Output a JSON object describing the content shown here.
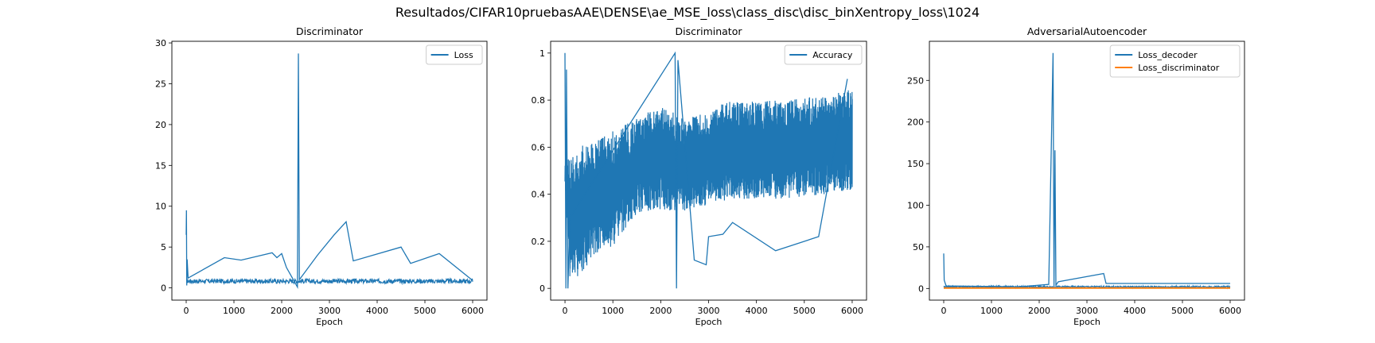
{
  "figure": {
    "suptitle": "Resultados/CIFAR10pruebasAAE\\DENSE\\ae_MSE_loss\\class_disc\\disc_binXentropy_loss\\1024"
  },
  "colors": {
    "blue": "#1f77b4",
    "orange": "#ff7f0e"
  },
  "chart_data": [
    {
      "type": "line",
      "title": "Discriminator",
      "xlabel": "Epoch",
      "ylabel": "",
      "xlim": [
        -300,
        6300
      ],
      "ylim": [
        -1.5,
        30.2
      ],
      "xticks": [
        0,
        1000,
        2000,
        3000,
        4000,
        5000,
        6000
      ],
      "yticks": [
        0,
        5,
        10,
        15,
        20,
        25,
        30
      ],
      "legend": "upper-right",
      "series": [
        {
          "name": "Loss",
          "color": "#1f77b4",
          "noise": [
            0.55,
            1.1
          ],
          "points": [
            [
              0,
              6.5
            ],
            [
              5,
              9.5
            ],
            [
              12,
              0.3
            ],
            [
              20,
              3.5
            ],
            [
              40,
              1.2
            ],
            [
              800,
              3.7
            ],
            [
              1150,
              3.4
            ],
            [
              1800,
              4.3
            ],
            [
              1900,
              3.7
            ],
            [
              2000,
              4.2
            ],
            [
              2100,
              2.5
            ],
            [
              2330,
              0.1
            ],
            [
              2350,
              28.7
            ],
            [
              2370,
              1.0
            ],
            [
              2750,
              4.0
            ],
            [
              3100,
              6.5
            ],
            [
              3350,
              8.1
            ],
            [
              3500,
              3.3
            ],
            [
              4500,
              5.0
            ],
            [
              4700,
              3.0
            ],
            [
              5300,
              4.2
            ],
            [
              6000,
              0.9
            ]
          ]
        }
      ]
    },
    {
      "type": "line",
      "title": "Discriminator",
      "xlabel": "Epoch",
      "ylabel": "",
      "xlim": [
        -300,
        6300
      ],
      "ylim": [
        -0.05,
        1.05
      ],
      "xticks": [
        0,
        1000,
        2000,
        3000,
        4000,
        5000,
        6000
      ],
      "yticks": [
        0.0,
        0.2,
        0.4,
        0.6,
        0.8,
        1.0
      ],
      "legend": "upper-right",
      "series": [
        {
          "name": "Accuracy",
          "color": "#1f77b4",
          "band": [
            [
              0,
              0.45,
              0.55
            ],
            [
              100,
              0.05,
              0.55
            ],
            [
              300,
              0.05,
              0.6
            ],
            [
              700,
              0.15,
              0.64
            ],
            [
              1000,
              0.18,
              0.67
            ],
            [
              1500,
              0.32,
              0.72
            ],
            [
              2000,
              0.33,
              0.78
            ],
            [
              2500,
              0.33,
              0.72
            ],
            [
              3500,
              0.38,
              0.8
            ],
            [
              4500,
              0.38,
              0.8
            ],
            [
              5500,
              0.4,
              0.82
            ],
            [
              6000,
              0.42,
              0.85
            ]
          ],
          "points": [
            [
              0,
              1.0
            ],
            [
              20,
              0.0
            ],
            [
              30,
              0.93
            ],
            [
              60,
              0.0
            ],
            [
              100,
              0.3
            ],
            [
              2300,
              1.0
            ],
            [
              2330,
              0.0
            ],
            [
              2360,
              0.97
            ],
            [
              2700,
              0.12
            ],
            [
              2950,
              0.1
            ],
            [
              3000,
              0.22
            ],
            [
              3300,
              0.23
            ],
            [
              3500,
              0.28
            ],
            [
              4400,
              0.16
            ],
            [
              5300,
              0.22
            ],
            [
              5900,
              0.89
            ]
          ]
        }
      ]
    },
    {
      "type": "line",
      "title": "AdversarialAutoencoder",
      "xlabel": "Epoch",
      "ylabel": "",
      "xlim": [
        -300,
        6300
      ],
      "ylim": [
        -14,
        297
      ],
      "xticks": [
        0,
        1000,
        2000,
        3000,
        4000,
        5000,
        6000
      ],
      "yticks": [
        0,
        50,
        100,
        150,
        200,
        250
      ],
      "legend": "upper-right",
      "series": [
        {
          "name": "Loss_decoder",
          "color": "#1f77b4",
          "noise": [
            1.0,
            3.0
          ],
          "points": [
            [
              0,
              42
            ],
            [
              10,
              10
            ],
            [
              50,
              3
            ],
            [
              1600,
              2
            ],
            [
              2200,
              5
            ],
            [
              2290,
              283
            ],
            [
              2310,
              2
            ],
            [
              2330,
              166
            ],
            [
              2350,
              4
            ],
            [
              2400,
              8
            ],
            [
              3350,
              18
            ],
            [
              3400,
              6
            ],
            [
              6000,
              6
            ]
          ]
        },
        {
          "name": "Loss_discriminator",
          "color": "#ff7f0e",
          "points": [
            [
              0,
              0.5
            ],
            [
              6000,
              0.6
            ]
          ]
        }
      ]
    }
  ]
}
